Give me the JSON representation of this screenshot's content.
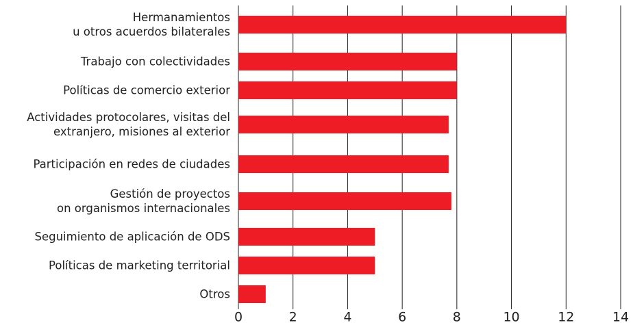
{
  "chart_data": {
    "type": "barh",
    "categories": [
      "Hermanamientos\nu otros acuerdos bilaterales",
      "Trabajo con colectividades",
      "Políticas de comercio exterior",
      "Actividades protocolares, visitas del\nextranjero, misiones al exterior",
      "Participación en redes de ciudades",
      "Gestión de proyectos\non organismos internacionales",
      "Seguimiento de aplicación de ODS",
      "Políticas de marketing territorial",
      "Otros"
    ],
    "values": [
      12,
      8,
      8,
      7.7,
      7.7,
      7.8,
      5,
      5,
      1
    ],
    "color": "#ee1c25",
    "xlim": [
      0,
      14
    ],
    "xticks": [
      0,
      2,
      4,
      6,
      8,
      10,
      12,
      14
    ],
    "grid": true
  }
}
